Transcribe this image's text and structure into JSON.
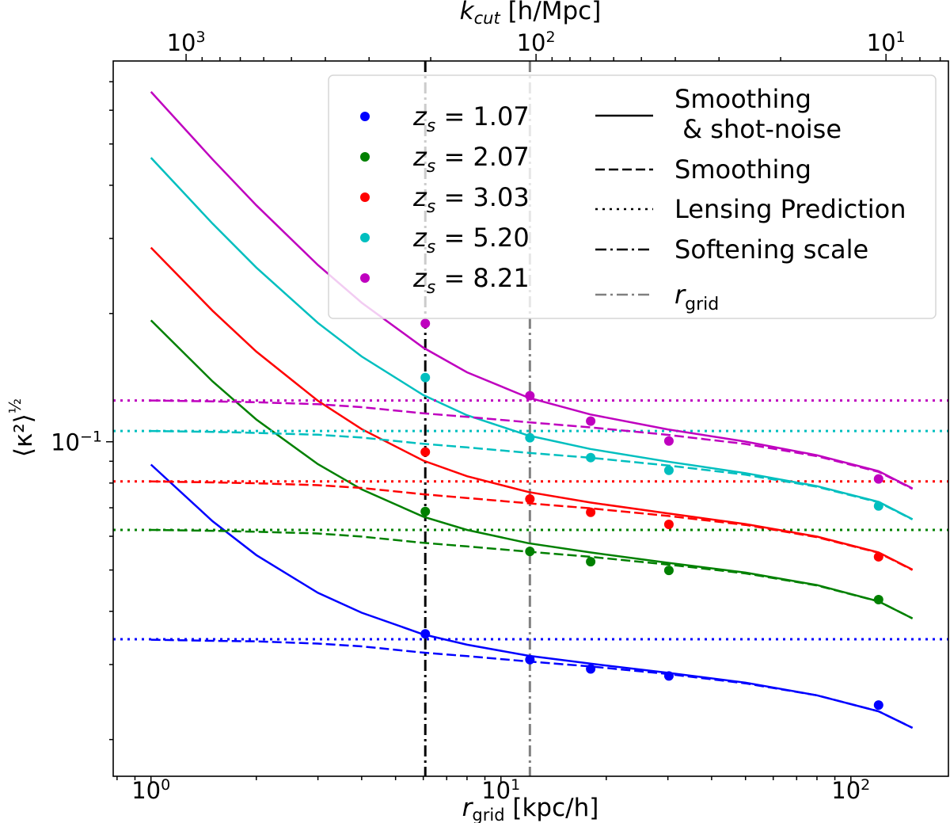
{
  "chart_data": {
    "type": "line",
    "xlabel": "r_grid [kpc/h]",
    "ylabel": "⟨κ²⟩^½",
    "top_xlabel": "k_cut [h/Mpc]",
    "xscale": "log",
    "yscale": "log",
    "xlim": [
      0.78,
      190
    ],
    "ylim": [
      0.0164,
      0.783
    ],
    "x_ticks": [
      "10^0",
      "10^1",
      "10^2"
    ],
    "y_ticks": [
      "10^-1"
    ],
    "top_x_ticks": [
      "10^3",
      "10^2",
      "10^1"
    ],
    "grid": false,
    "legend_placement": "upper-right",
    "r": [
      1,
      1.5,
      2,
      3,
      4,
      6,
      8,
      12,
      18,
      30,
      50,
      80,
      120,
      150
    ],
    "points_r": [
      6.08,
      12.1,
      18.05,
      30.2,
      120
    ],
    "softening_scale_r": 6.08,
    "r_grid_line": 12.1,
    "series": [
      {
        "name": "z_s = 1.07",
        "z": "1.07",
        "color": "#0000ff",
        "points": [
          0.0354,
          0.0308,
          0.0293,
          0.0282,
          0.0241
        ],
        "lensing_prediction": 0.0344,
        "smoothing": [
          0.0343,
          0.0341,
          0.034,
          0.0336,
          0.0331,
          0.032,
          0.0314,
          0.0305,
          0.0297,
          0.0285,
          0.0271,
          0.0254,
          0.0233,
          0.0213
        ],
        "smoothing_shot_noise": [
          0.0884,
          0.0651,
          0.0542,
          0.0442,
          0.0397,
          0.0353,
          0.0334,
          0.03145,
          0.03015,
          0.02868,
          0.0272,
          0.0254,
          0.0233,
          0.0213
        ]
      },
      {
        "name": "z_s = 2.07",
        "z": "2.07",
        "color": "#008000",
        "points": [
          0.0686,
          0.0553,
          0.0523,
          0.0499,
          0.0426
        ],
        "lensing_prediction": 0.0621,
        "smoothing": [
          0.0621,
          0.0618,
          0.0615,
          0.0609,
          0.0599,
          0.0579,
          0.0568,
          0.0552,
          0.0537,
          0.0515,
          0.0491,
          0.046,
          0.0422,
          0.0385
        ],
        "smoothing_shot_noise": [
          0.1928,
          0.1386,
          0.1128,
          0.0886,
          0.0773,
          0.0667,
          0.0621,
          0.0578,
          0.055,
          0.052,
          0.0493,
          0.0461,
          0.0422,
          0.0385
        ]
      },
      {
        "name": "z_s = 3.03",
        "z": "3.03",
        "color": "#ff0000",
        "points": [
          0.0946,
          0.0734,
          0.0683,
          0.064,
          0.0537
        ],
        "lensing_prediction": 0.0807,
        "smoothing": [
          0.0807,
          0.0803,
          0.0799,
          0.0791,
          0.0779,
          0.0753,
          0.0738,
          0.0717,
          0.0698,
          0.067,
          0.0638,
          0.0597,
          0.0549,
          0.05
        ],
        "smoothing_shot_noise": [
          0.2856,
          0.203,
          0.1628,
          0.1248,
          0.1071,
          0.0903,
          0.083,
          0.0762,
          0.072,
          0.0679,
          0.0641,
          0.0599,
          0.055,
          0.0501
        ]
      },
      {
        "name": "z_s = 5.20",
        "z": "5.20",
        "color": "#00bfbf",
        "points": [
          0.1415,
          0.1022,
          0.0918,
          0.0857,
          0.0707
        ],
        "lensing_prediction": 0.106,
        "smoothing": [
          0.106,
          0.1055,
          0.1049,
          0.1039,
          0.1023,
          0.0989,
          0.097,
          0.0942,
          0.0917,
          0.088,
          0.0837,
          0.0784,
          0.0721,
          0.0657
        ],
        "smoothing_shot_noise": [
          0.4643,
          0.3251,
          0.2564,
          0.1901,
          0.1586,
          0.1287,
          0.1154,
          0.1034,
          0.0962,
          0.0898,
          0.0844,
          0.0787,
          0.0723,
          0.0658
        ]
      },
      {
        "name": "z_s = 8.21",
        "z": "8.21",
        "color": "#bf00bf",
        "points": [
          0.1895,
          0.1282,
          0.1118,
          0.1004,
          0.0818
        ],
        "lensing_prediction": 0.125,
        "smoothing": [
          0.125,
          0.1244,
          0.1238,
          0.1225,
          0.1206,
          0.1166,
          0.1144,
          0.1111,
          0.1081,
          0.1038,
          0.0988,
          0.0925,
          0.085,
          0.0775
        ],
        "smoothing_shot_noise": [
          0.6629,
          0.46,
          0.359,
          0.2599,
          0.2121,
          0.1663,
          0.1456,
          0.1269,
          0.1159,
          0.1069,
          0.1001,
          0.093,
          0.0853,
          0.0777
        ]
      }
    ],
    "line_legend": [
      {
        "label1": "Smoothing",
        "label2": " & shot-noise",
        "style": "solid",
        "color": "#000000"
      },
      {
        "label1": "Smoothing",
        "style": "dashed",
        "color": "#000000"
      },
      {
        "label1": "Lensing Prediction",
        "style": "dotted",
        "color": "#000000"
      },
      {
        "label1": "Softening scale",
        "style": "dashdot",
        "color": "#000000"
      },
      {
        "label1": "r",
        "sub": "grid",
        "style": "dashdot",
        "color": "#808080"
      }
    ]
  }
}
